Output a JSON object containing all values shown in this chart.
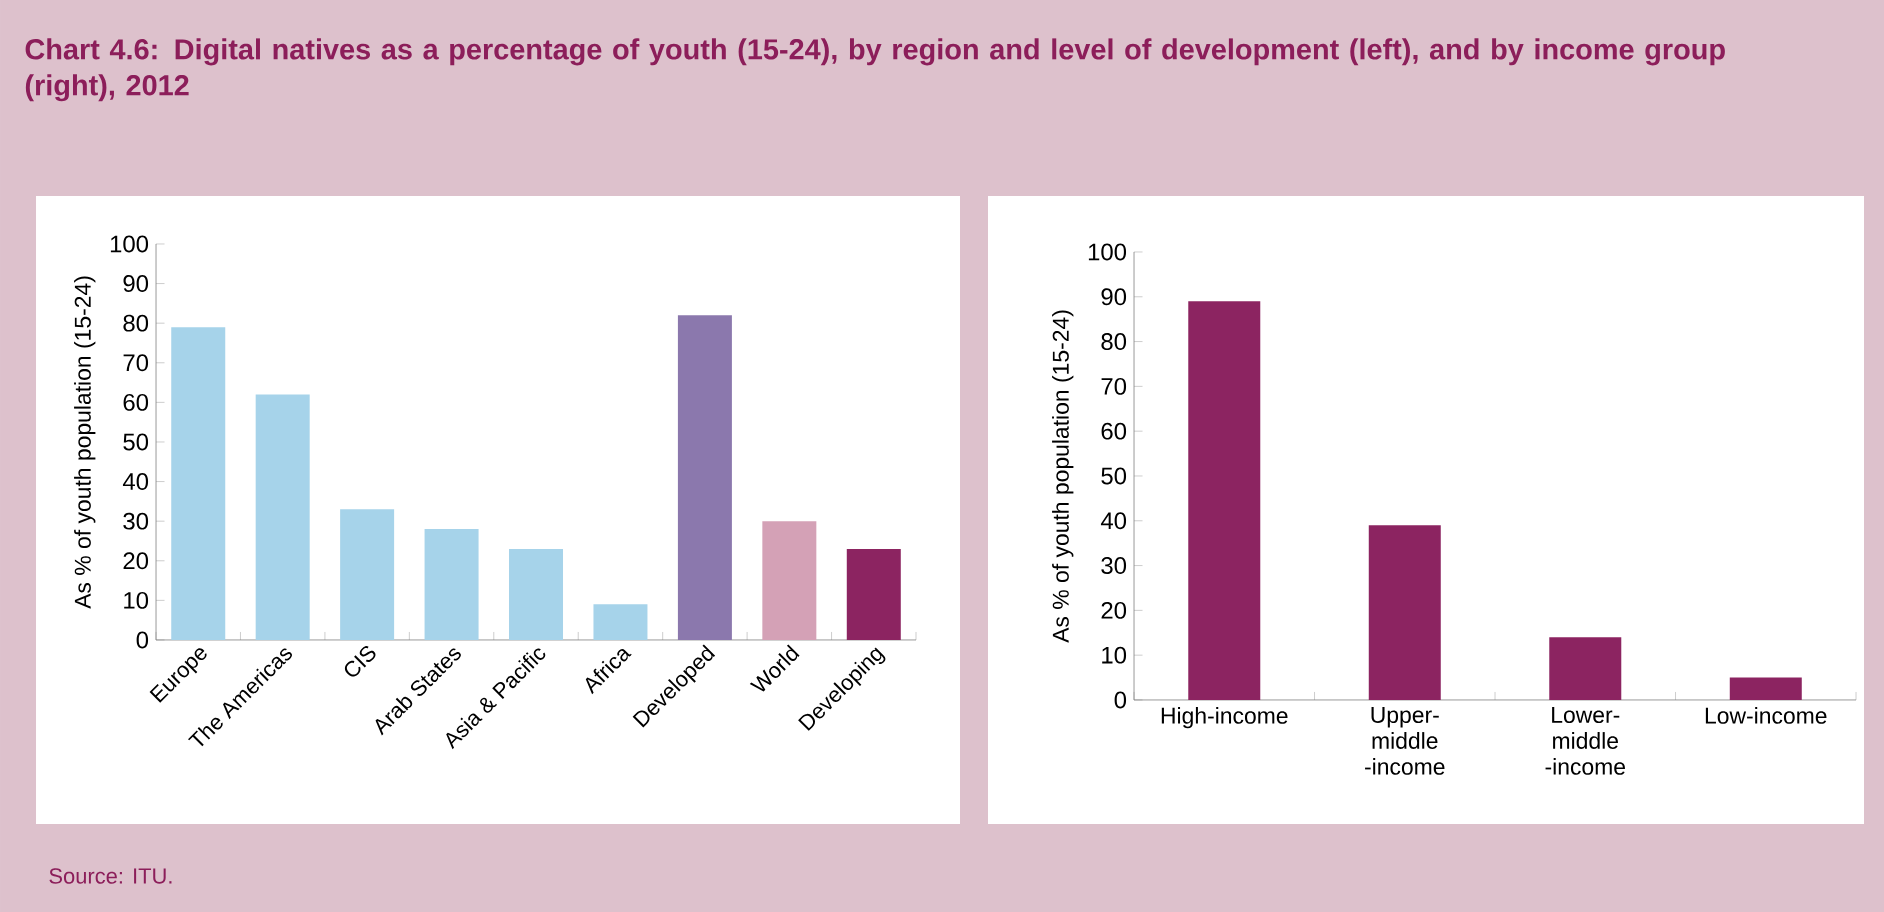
{
  "chart_data": [
    {
      "type": "bar",
      "title": "Chart 4.6: Digital natives as a percentage of youth (15-24), by region and level of development (left), and by income group (right), 2012",
      "ylabel": "As % of youth population (15-24)",
      "categories": [
        "Europe",
        "The Americas",
        "CIS",
        "Arab States",
        "Asia & Pacific",
        "Africa",
        "Developed",
        "World",
        "Developing"
      ],
      "values": [
        79,
        62,
        33,
        28,
        23,
        9,
        82,
        30,
        23
      ],
      "colors": [
        "#a6d3ea",
        "#a6d3ea",
        "#a6d3ea",
        "#a6d3ea",
        "#a6d3ea",
        "#a6d3ea",
        "#8b78ad",
        "#d4a1b6",
        "#8c2461"
      ],
      "ylim": [
        0,
        100
      ],
      "yticks": [
        0,
        10,
        20,
        30,
        40,
        50,
        60,
        70,
        80,
        90,
        100
      ],
      "annotations": [
        "Source:  ITU."
      ]
    },
    {
      "type": "bar",
      "ylabel": "As % of youth population (15-24)",
      "categories": [
        "High-income",
        "Upper-middle -income",
        "Lower-middle -income",
        "Low-income"
      ],
      "values": [
        89,
        39,
        14,
        5
      ],
      "color": "#8c2461",
      "ylim": [
        0,
        100
      ],
      "yticks": [
        0,
        10,
        20,
        30,
        40,
        50,
        60,
        70,
        80,
        90,
        100
      ]
    }
  ]
}
